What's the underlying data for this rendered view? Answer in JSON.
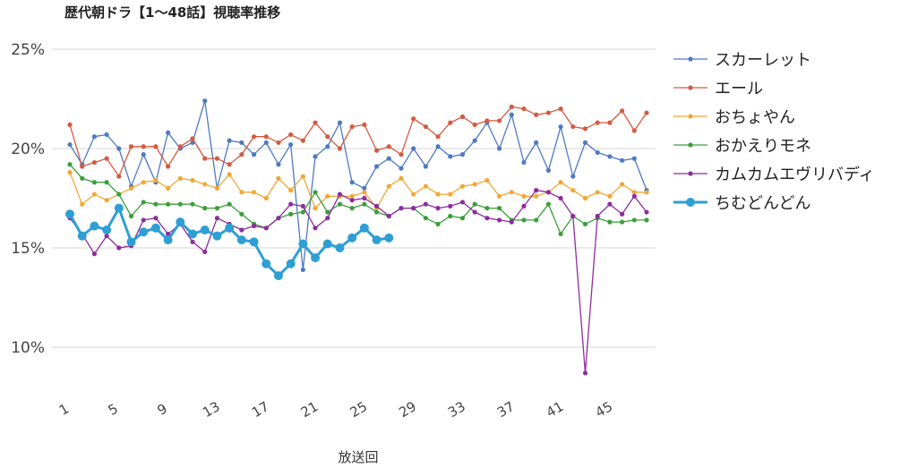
{
  "chart_data": {
    "type": "line",
    "title": "歴代朝ドラ【1～48話】視聴率推移",
    "xlabel": "放送回",
    "ylabel": "",
    "xlim": [
      1,
      48
    ],
    "ylim": [
      0.08,
      0.25
    ],
    "y_ticks": [
      "25%",
      "20%",
      "15%",
      "10%"
    ],
    "y_tick_values": [
      0.25,
      0.2,
      0.15,
      0.1
    ],
    "x_ticks": [
      "1",
      "5",
      "9",
      "13",
      "17",
      "21",
      "25",
      "29",
      "33",
      "37",
      "41",
      "45"
    ],
    "grid": true,
    "legend_position": "right",
    "series": [
      {
        "name": "スカーレット",
        "color": "#4e79c4",
        "values": [
          0.202,
          0.192,
          0.206,
          0.207,
          0.2,
          0.181,
          0.197,
          0.183,
          0.208,
          0.2,
          0.203,
          0.224,
          0.18,
          0.204,
          0.203,
          0.197,
          0.203,
          0.192,
          0.202,
          0.139,
          0.196,
          0.201,
          0.213,
          0.183,
          0.18,
          0.191,
          0.195,
          0.19,
          0.2,
          0.191,
          0.201,
          0.196,
          0.197,
          0.204,
          0.213,
          0.2,
          0.217,
          0.193,
          0.203,
          0.189,
          0.211,
          0.186,
          0.203,
          0.198,
          0.196,
          0.194,
          0.195,
          0.179
        ]
      },
      {
        "name": "エール",
        "color": "#d45a3f",
        "values": [
          0.212,
          0.191,
          0.193,
          0.195,
          0.186,
          0.201,
          0.201,
          0.201,
          0.191,
          0.201,
          0.205,
          0.195,
          0.195,
          0.192,
          0.197,
          0.206,
          0.206,
          0.203,
          0.207,
          0.204,
          0.213,
          0.206,
          0.2,
          0.211,
          0.212,
          0.199,
          0.201,
          0.197,
          0.215,
          0.211,
          0.206,
          0.213,
          0.216,
          0.212,
          0.214,
          0.214,
          0.221,
          0.22,
          0.217,
          0.218,
          0.22,
          0.211,
          0.21,
          0.213,
          0.213,
          0.219,
          0.209,
          0.218
        ]
      },
      {
        "name": "おちょやん",
        "color": "#f2a735",
        "values": [
          0.188,
          0.172,
          0.177,
          0.174,
          0.177,
          0.18,
          0.183,
          0.184,
          0.18,
          0.185,
          0.184,
          0.182,
          0.18,
          0.187,
          0.178,
          0.178,
          0.175,
          0.185,
          0.179,
          0.186,
          0.17,
          0.176,
          0.176,
          0.176,
          0.178,
          0.17,
          0.181,
          0.185,
          0.177,
          0.181,
          0.177,
          0.177,
          0.181,
          0.182,
          0.184,
          0.176,
          0.178,
          0.176,
          0.176,
          0.178,
          0.183,
          0.179,
          0.175,
          0.178,
          0.176,
          0.182,
          0.178,
          0.178
        ]
      },
      {
        "name": "おかえりモネ",
        "color": "#3aa03a",
        "values": [
          0.192,
          0.185,
          0.183,
          0.183,
          0.177,
          0.166,
          0.173,
          0.172,
          0.172,
          0.172,
          0.172,
          0.17,
          0.17,
          0.172,
          0.167,
          0.162,
          0.16,
          0.165,
          0.167,
          0.168,
          0.178,
          0.168,
          0.172,
          0.17,
          0.172,
          0.168,
          0.166,
          0.17,
          0.17,
          0.165,
          0.162,
          0.166,
          0.165,
          0.172,
          0.17,
          0.17,
          0.164,
          0.164,
          0.164,
          0.172,
          0.157,
          0.166,
          0.162,
          0.165,
          0.163,
          0.163,
          0.164,
          0.164
        ]
      },
      {
        "name": "カムカムエヴリバディ",
        "color": "#8e2c9e",
        "values": [
          0.165,
          0.157,
          0.147,
          0.156,
          0.15,
          0.151,
          0.164,
          0.165,
          0.157,
          0.162,
          0.153,
          0.148,
          0.165,
          0.162,
          0.159,
          0.161,
          0.16,
          0.165,
          0.172,
          0.171,
          0.16,
          0.165,
          0.177,
          0.174,
          0.175,
          0.171,
          0.166,
          0.17,
          0.17,
          0.172,
          0.17,
          0.171,
          0.173,
          0.168,
          0.165,
          0.164,
          0.163,
          0.171,
          0.179,
          0.178,
          0.175,
          0.166,
          0.087,
          0.166,
          0.172,
          0.167,
          0.176,
          0.168
        ]
      },
      {
        "name": "ちむどんどん",
        "color": "#2e9fd4",
        "values": [
          0.167,
          0.156,
          0.161,
          0.159,
          0.17,
          0.153,
          0.158,
          0.16,
          0.154,
          0.163,
          0.157,
          0.159,
          0.156,
          0.16,
          0.154,
          0.153,
          0.142,
          0.136,
          0.142,
          0.152,
          0.145,
          0.152,
          0.15,
          0.155,
          0.16,
          0.154,
          0.155
        ]
      }
    ]
  }
}
